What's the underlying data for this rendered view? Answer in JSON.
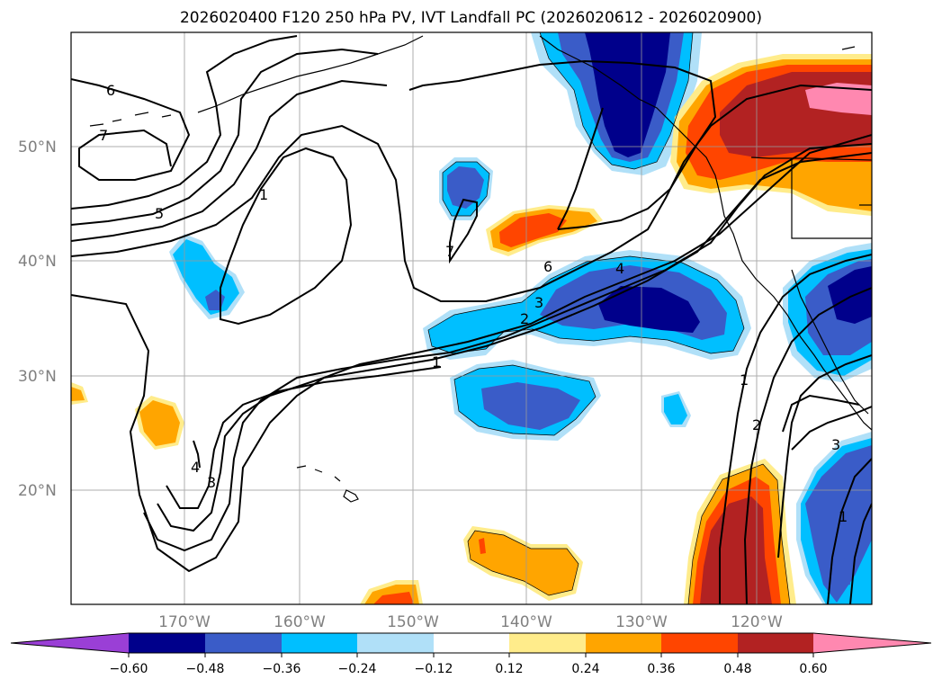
{
  "title": "2026020400 F120 250 hPa PV, IVT Landfall PC (2026020612 - 2026020900)",
  "lat_labels": [
    "50°N",
    "40°N",
    "30°N",
    "20°N"
  ],
  "lon_labels": [
    "170°W",
    "160°W",
    "150°W",
    "140°W",
    "130°W",
    "120°W"
  ],
  "colorbar": {
    "ticks": [
      "−0.60",
      "−0.48",
      "−0.36",
      "−0.24",
      "−0.12",
      "0.12",
      "0.24",
      "0.36",
      "0.48",
      "0.60"
    ],
    "colors": {
      "under": "#9a3fd6",
      "b1": "#00008b",
      "b2": "#3a5cc8",
      "b3": "#00bfff",
      "b4": "#b0e0f8",
      "b5": "#ffffff",
      "b6": "#ffec8b",
      "b7": "#ffa500",
      "b8": "#ff4500",
      "b9": "#b22222",
      "over": "#ff88b0"
    }
  },
  "contour_labels": [
    "6",
    "7",
    "5",
    "1",
    "7",
    "6",
    "4",
    "3",
    "2",
    "1",
    "1",
    "2",
    "3",
    "1",
    "4",
    "3"
  ]
}
